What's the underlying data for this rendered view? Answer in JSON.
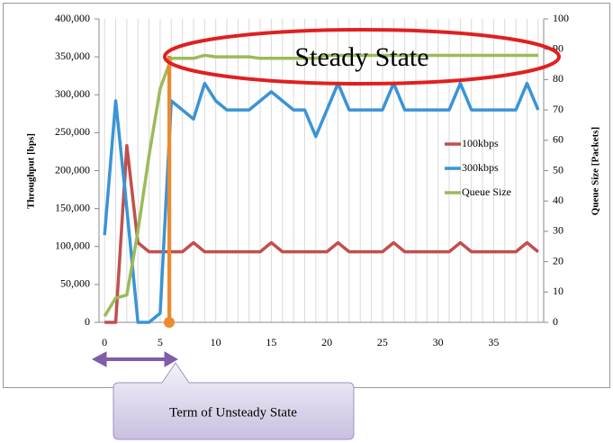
{
  "chart_data": {
    "type": "line",
    "categories": [
      0,
      null,
      null,
      null,
      null,
      5,
      null,
      null,
      null,
      null,
      10,
      null,
      null,
      null,
      null,
      15,
      null,
      null,
      null,
      null,
      20,
      null,
      null,
      null,
      null,
      25,
      null,
      null,
      null,
      null,
      30,
      null,
      null,
      null,
      null,
      35,
      null,
      null,
      null,
      null
    ],
    "series": [
      {
        "name": "100kbps",
        "color": "#c0504d",
        "values": [
          0,
          0,
          233000,
          105000,
          93000,
          93000,
          93000,
          93000,
          105000,
          93000,
          93000,
          93000,
          93000,
          93000,
          93000,
          105000,
          93000,
          93000,
          93000,
          93000,
          93000,
          105000,
          93000,
          93000,
          93000,
          93000,
          105000,
          93000,
          93000,
          93000,
          93000,
          93000,
          105000,
          93000,
          93000,
          93000,
          93000,
          93000,
          105000,
          93000
        ]
      },
      {
        "name": "300kbps",
        "color": "#3a94d6",
        "values": [
          115000,
          292000,
          150000,
          0,
          0,
          12000,
          292000,
          280000,
          268000,
          315000,
          292000,
          280000,
          280000,
          280000,
          292000,
          304000,
          292000,
          280000,
          280000,
          245000,
          280000,
          315000,
          280000,
          280000,
          280000,
          280000,
          315000,
          280000,
          280000,
          280000,
          280000,
          280000,
          315000,
          280000,
          280000,
          280000,
          280000,
          280000,
          315000,
          280000
        ]
      },
      {
        "name": "Queue Size",
        "color": "#9bbb59",
        "axis": "y2",
        "values": [
          2,
          8,
          9,
          30,
          55,
          77,
          87,
          87,
          87,
          88,
          87.5,
          87.5,
          87.5,
          87.5,
          87,
          87,
          87,
          87,
          87,
          87,
          88,
          88,
          88,
          88,
          88,
          88,
          88,
          88,
          88,
          88,
          88,
          88,
          88,
          88,
          88,
          88,
          88,
          88,
          88,
          88
        ]
      }
    ],
    "ylabel": "Throughput [bps]",
    "y2label": "Queue Size [Packets]",
    "ylim": [
      0,
      400000
    ],
    "yticks": [
      0,
      {
        "value": 50000,
        "label": "50,000"
      },
      {
        "value": 100000,
        "label": "100,000"
      },
      {
        "value": 150000,
        "label": "150,000"
      },
      {
        "value": 200000,
        "label": "200,000"
      },
      {
        "value": 250000,
        "label": "250,000"
      },
      {
        "value": 300000,
        "label": "300,000"
      },
      {
        "value": 350000,
        "label": "350,000"
      },
      {
        "value": 400000,
        "label": "400,000"
      }
    ],
    "y2lim": [
      0,
      100
    ],
    "y2ticks": [
      0,
      10,
      20,
      30,
      40,
      50,
      60,
      70,
      80,
      90,
      100
    ],
    "grid": "x",
    "legend": "right",
    "annotations": [
      "Steady State",
      "Term of Unsteady State"
    ]
  }
}
